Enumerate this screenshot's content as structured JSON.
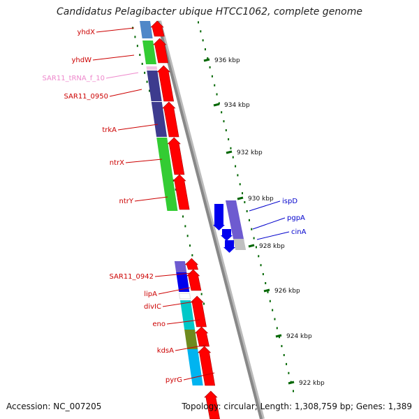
{
  "title": "Candidatus Pelagibacter ubique HTCC1062, complete genome",
  "footer": {
    "accession": "Accession: NC_007205",
    "summary": "Topology: circular; Length: 1,308,759 bp; Genes: 1,389"
  },
  "colors": {
    "reverse_label": "#cc0000",
    "forward_label": "#0000cc",
    "trna_label": "#ee88cc",
    "backbone": "#888888",
    "tick": "#006600",
    "arrow": "#ff0000"
  },
  "ticks": [
    "936 kbp",
    "934 kbp",
    "932 kbp",
    "930 kbp",
    "928 kbp",
    "926 kbp",
    "924 kbp",
    "922 kbp"
  ],
  "genes_reverse": [
    {
      "name": "yhdX",
      "color": "#4f87c8"
    },
    {
      "name": "yhdW",
      "color": "#33cc33"
    },
    {
      "name": "SAR11_tRNA_f_10",
      "color": "#f2c4e4"
    },
    {
      "name": "SAR11_0950",
      "color": "#3d3b8e"
    },
    {
      "name": "trkA",
      "color": "#3d3b8e"
    },
    {
      "name": "ntrX",
      "color": "#33cc33"
    },
    {
      "name": "ntrY",
      "color": "#33cc33"
    },
    {
      "name": "SAR11_0942",
      "color": "#6e5bd0"
    },
    {
      "name": "lipA",
      "color": "#0000ee"
    },
    {
      "name": "divIC",
      "color": "#ffffff"
    },
    {
      "name": "eno",
      "color": "#00c8c8"
    },
    {
      "name": "kdsA",
      "color": "#6e8a1e"
    },
    {
      "name": "pyrG",
      "color": "#00b4f0"
    }
  ],
  "genes_forward": [
    {
      "name": "ispD",
      "color": "#6e5bd0"
    },
    {
      "name": "pgpA",
      "color": "#6e5bd0"
    },
    {
      "name": "cinA",
      "color": "#c0c0c0"
    }
  ]
}
